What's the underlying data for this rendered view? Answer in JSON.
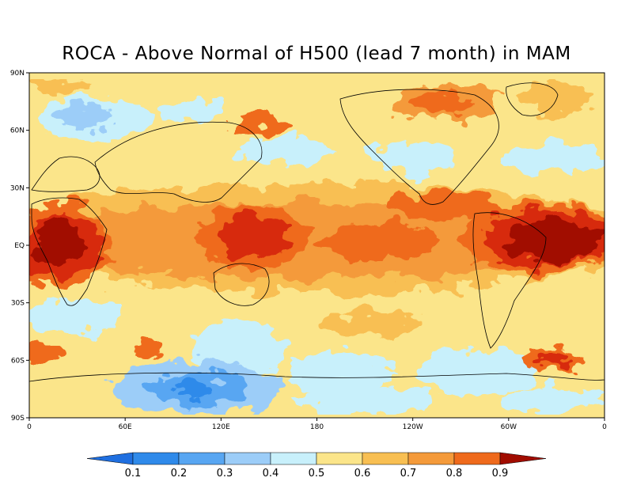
{
  "title": "ROCA - Above Normal of H500 (lead 7 month) in MAM",
  "lat_ticks": [
    "90N",
    "60N",
    "30N",
    "EQ",
    "30S",
    "60S",
    "90S"
  ],
  "lon_ticks": [
    "0",
    "60E",
    "120E",
    "180",
    "120W",
    "60W",
    "0"
  ],
  "colorbar": {
    "labels": [
      "0.1",
      "0.2",
      "0.3",
      "0.4",
      "0.5",
      "0.6",
      "0.7",
      "0.8",
      "0.9"
    ],
    "colors": [
      "#1f6fe0",
      "#2f8aea",
      "#58a6f2",
      "#9ccdf8",
      "#c8f0fb",
      "#fbe58a",
      "#f8bf52",
      "#f49a3a",
      "#ef6a1c",
      "#d72c10",
      "#a10c00"
    ]
  }
}
